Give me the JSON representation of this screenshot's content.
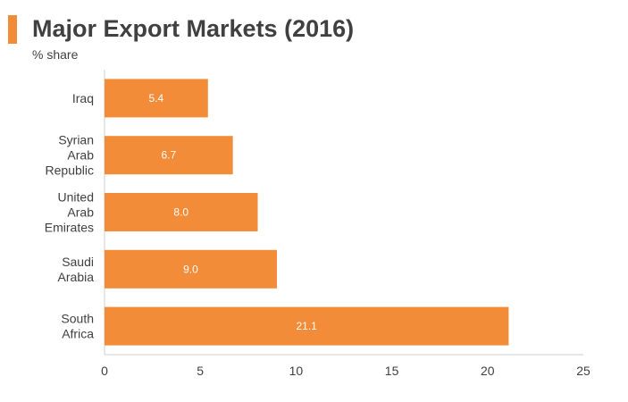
{
  "title": "Major Export Markets (2016)",
  "subtitle": "% share",
  "colors": {
    "bar": "#f28c38",
    "accent": "#f28c38",
    "axis": "#cfcfcf",
    "text": "#404040"
  },
  "chart_data": {
    "type": "bar",
    "orientation": "horizontal",
    "title": "Major Export Markets (2016)",
    "ylabel": "% share",
    "categories": [
      [
        "Iraq"
      ],
      [
        "Syrian",
        "Arab",
        "Republic"
      ],
      [
        "United",
        "Arab",
        "Emirates"
      ],
      [
        "Saudi",
        "Arabia"
      ],
      [
        "South",
        "Africa"
      ]
    ],
    "values": [
      5.4,
      6.7,
      8.0,
      9.0,
      21.1
    ],
    "value_labels": [
      "5.4",
      "6.7",
      "8.0",
      "9.0",
      "21.1"
    ],
    "xlim": [
      0,
      25
    ],
    "xticks": [
      0,
      5,
      10,
      15,
      20,
      25
    ],
    "grid": false,
    "legend": "none"
  }
}
